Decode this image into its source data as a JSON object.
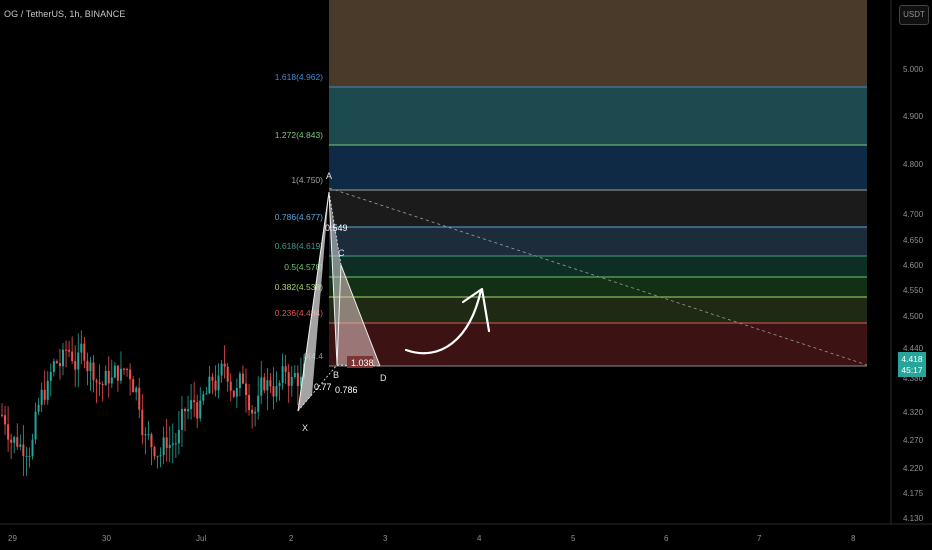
{
  "header": {
    "symbol_line": "OG / TetherUS, 1h, BINANCE"
  },
  "price_axis": {
    "unit_button": "USDT",
    "ticks": [
      "5.000",
      "4.900",
      "4.800",
      "4.700",
      "4.650",
      "4.600",
      "4.550",
      "4.500",
      "4.440",
      "4.380",
      "4.320",
      "4.270",
      "4.220",
      "4.175",
      "4.130"
    ]
  },
  "time_axis": {
    "ticks": [
      "29",
      "30",
      "Jul",
      "2",
      "3",
      "4",
      "5",
      "6",
      "7",
      "8"
    ]
  },
  "last_price": {
    "price": "4.418",
    "countdown": "45:17"
  },
  "colors": {
    "up": "#26a69a",
    "down": "#ef5350",
    "price_tag": "#26a69a"
  },
  "fib_levels": [
    {
      "label": "1.618(4.962)",
      "color": "#3d8bd6",
      "fill": "#1d4a4f"
    },
    {
      "label": "1.272(4.843)",
      "color": "#7ec97e",
      "fill": "#0f2a45"
    },
    {
      "label": "1(4.750)",
      "color": "#a0a0a0",
      "fill": "#1b1b1b"
    },
    {
      "label": "0.786(4.677)",
      "color": "#57a7e0",
      "fill": "#1d2c3a"
    },
    {
      "label": "0.618(4.619)",
      "color": "#3f9e8a",
      "fill": "#0e2d25"
    },
    {
      "label": "0.5(4.578)",
      "color": "#6ec96e",
      "fill": "#143014"
    },
    {
      "label": "0.382(4.538)",
      "color": "#a9d96b",
      "fill": "#1e2a14"
    },
    {
      "label": "0.236(4.484)",
      "color": "#e05555",
      "fill": "#3d1212"
    },
    {
      "label": "0(4.4",
      "color": "#8a8a8a",
      "fill": ""
    }
  ],
  "top_zone_fill": "#4a3a2a",
  "harmonic": {
    "points": [
      "X",
      "A",
      "B",
      "C",
      "D"
    ],
    "ratios": [
      "0.549",
      "0.77",
      "0.786",
      "1.038"
    ]
  },
  "chart_data": {
    "type": "candlestick",
    "title": "OG / TetherUS, 1h, BINANCE",
    "ylim": [
      4.13,
      5.03
    ],
    "candles_ohlc_sample": [
      [
        4.3,
        4.36,
        4.27,
        4.33
      ],
      [
        4.33,
        4.4,
        4.31,
        4.38
      ],
      [
        4.38,
        4.43,
        4.35,
        4.36
      ],
      [
        4.36,
        4.55,
        4.34,
        4.5
      ],
      [
        4.5,
        4.53,
        4.4,
        4.42
      ],
      [
        4.42,
        4.47,
        4.38,
        4.45
      ],
      [
        4.45,
        4.48,
        4.36,
        4.38
      ],
      [
        4.38,
        4.42,
        4.32,
        4.4
      ],
      [
        4.4,
        4.44,
        4.34,
        4.36
      ],
      [
        4.36,
        4.39,
        4.27,
        4.29
      ],
      [
        4.29,
        4.36,
        4.25,
        4.34
      ],
      [
        4.34,
        4.4,
        4.32,
        4.38
      ],
      [
        4.38,
        4.41,
        4.33,
        4.35
      ],
      [
        4.35,
        4.38,
        4.3,
        4.37
      ],
      [
        4.37,
        4.4,
        4.34,
        4.36
      ],
      [
        4.36,
        4.38,
        4.31,
        4.33
      ],
      [
        4.33,
        4.36,
        4.3,
        4.35
      ],
      [
        4.35,
        4.39,
        4.33,
        4.38
      ],
      [
        4.38,
        4.41,
        4.35,
        4.37
      ],
      [
        4.37,
        4.75,
        4.3,
        4.66
      ],
      [
        4.66,
        4.68,
        4.41,
        4.44
      ],
      [
        4.44,
        4.59,
        4.42,
        4.55
      ],
      [
        4.55,
        4.57,
        4.41,
        4.43
      ]
    ],
    "fib_prices": [
      4.962,
      4.843,
      4.75,
      4.677,
      4.619,
      4.578,
      4.538,
      4.484,
      4.414
    ],
    "harmonic_pattern_prices": {
      "X": 4.32,
      "A": 4.75,
      "B": 4.42,
      "C": 4.59,
      "D": 4.414
    }
  }
}
